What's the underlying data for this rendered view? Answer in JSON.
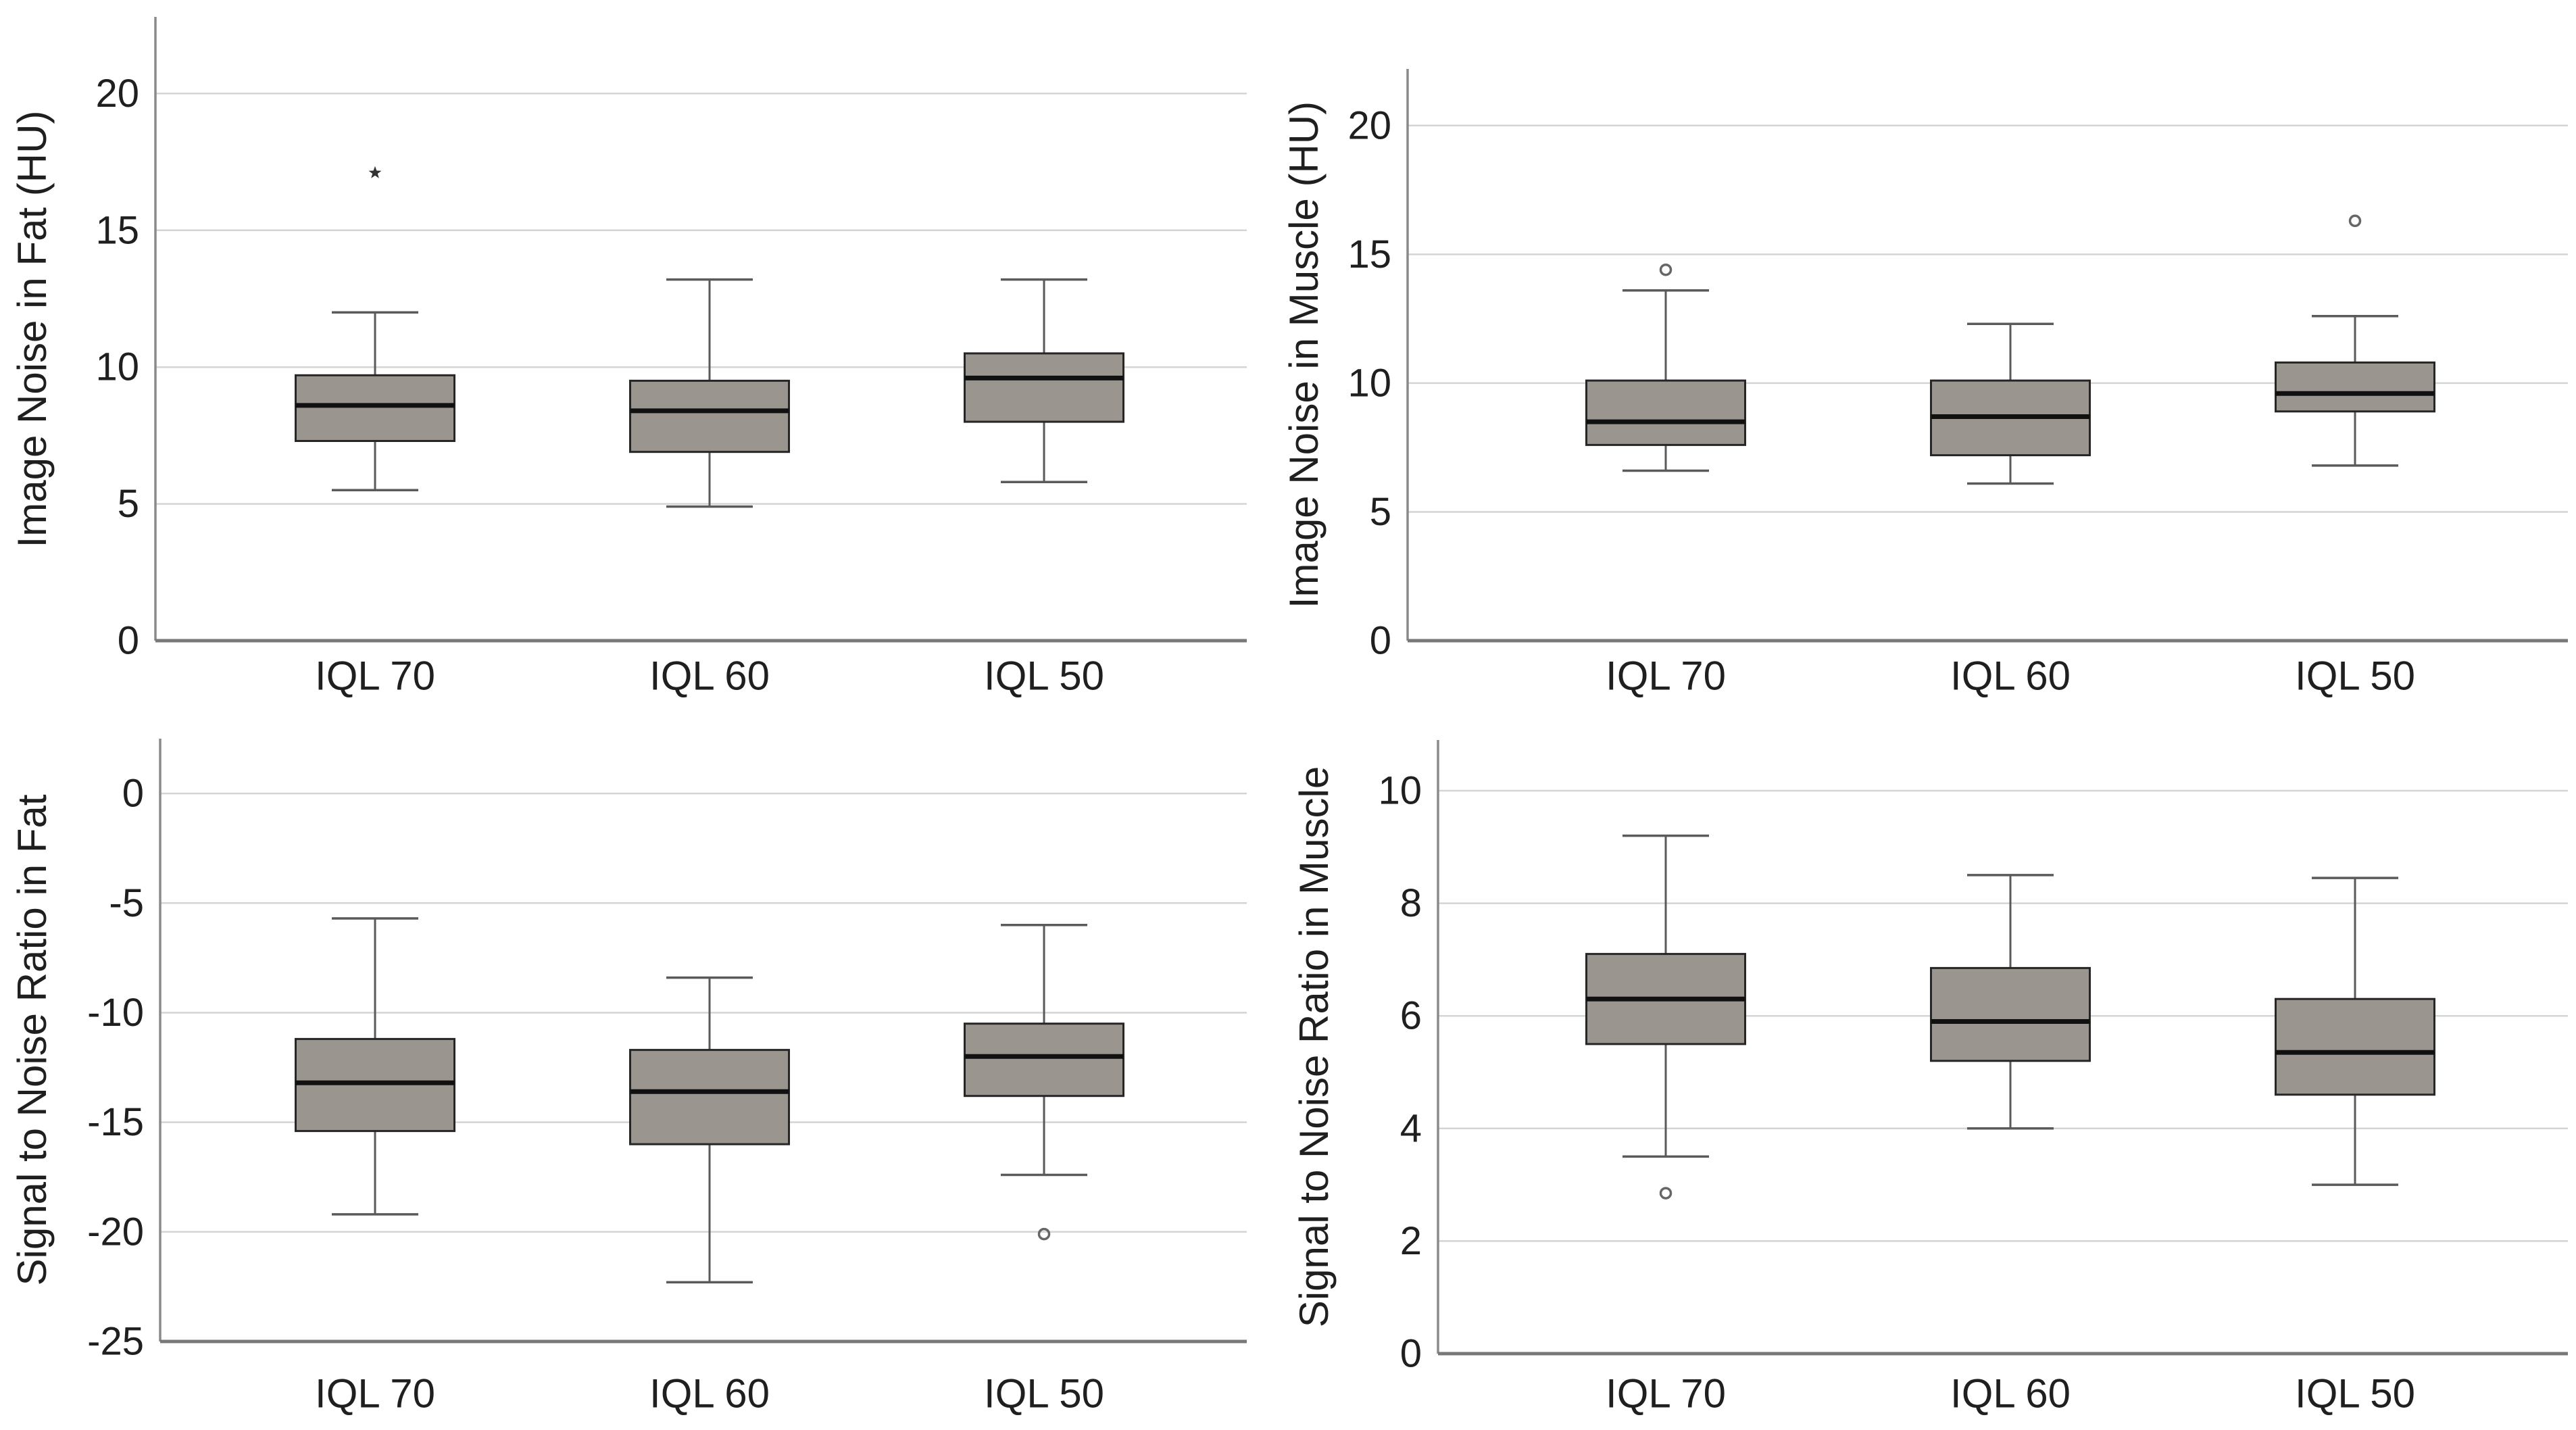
{
  "figure": {
    "background": "#ffffff",
    "colors": {
      "box_fill": "#9b9590",
      "box_border": "#262626",
      "median": "#111111",
      "whisker": "#5a5a5a",
      "gridline": "#d4d4d4",
      "y_axis_line": "#8a8a8a",
      "x_axis_line": "#787878",
      "outlier": "#666666",
      "text": "#1f1f1f"
    }
  },
  "chart_data": [
    {
      "type": "box",
      "title": "",
      "xlabel": "",
      "ylabel": "Image Noise in Fat (HU)",
      "categories": [
        "IQL 70",
        "IQL 60",
        "IQL 50"
      ],
      "yticks": [
        0,
        5,
        10,
        15,
        20
      ],
      "ylim": [
        0,
        22.8
      ],
      "grid": true,
      "boxes": [
        {
          "category": "IQL 70",
          "whisker_low": 5.5,
          "q1": 7.3,
          "median": 8.6,
          "q3": 9.7,
          "whisker_high": 12.0,
          "outliers": [
            {
              "value": 17.1,
              "symbol": "star"
            }
          ]
        },
        {
          "category": "IQL 60",
          "whisker_low": 4.9,
          "q1": 6.9,
          "median": 8.4,
          "q3": 9.5,
          "whisker_high": 13.2,
          "outliers": []
        },
        {
          "category": "IQL 50",
          "whisker_low": 5.8,
          "q1": 8.0,
          "median": 9.6,
          "q3": 10.5,
          "whisker_high": 13.2,
          "outliers": []
        }
      ]
    },
    {
      "type": "box",
      "title": "",
      "xlabel": "",
      "ylabel": "Image Noise in Muscle (HU)",
      "categories": [
        "IQL 70",
        "IQL 60",
        "IQL 50"
      ],
      "yticks": [
        0,
        5,
        10,
        15,
        20
      ],
      "ylim": [
        0,
        22.2
      ],
      "grid": true,
      "boxes": [
        {
          "category": "IQL 70",
          "whisker_low": 6.6,
          "q1": 7.6,
          "median": 8.5,
          "q3": 10.1,
          "whisker_high": 13.6,
          "outliers": [
            {
              "value": 14.4,
              "symbol": "circle"
            }
          ]
        },
        {
          "category": "IQL 60",
          "whisker_low": 6.1,
          "q1": 7.2,
          "median": 8.7,
          "q3": 10.1,
          "whisker_high": 12.3,
          "outliers": []
        },
        {
          "category": "IQL 50",
          "whisker_low": 6.8,
          "q1": 8.9,
          "median": 9.6,
          "q3": 10.8,
          "whisker_high": 12.6,
          "outliers": [
            {
              "value": 16.3,
              "symbol": "circle"
            }
          ]
        }
      ]
    },
    {
      "type": "box",
      "title": "",
      "xlabel": "",
      "ylabel": "Signal to Noise Ratio in Fat",
      "categories": [
        "IQL 70",
        "IQL 60",
        "IQL 50"
      ],
      "yticks": [
        0,
        -5,
        -10,
        -15,
        -20,
        -25
      ],
      "ylim": [
        -25,
        2.5
      ],
      "grid": true,
      "boxes": [
        {
          "category": "IQL 70",
          "whisker_low": -19.2,
          "q1": -15.4,
          "median": -13.2,
          "q3": -11.2,
          "whisker_high": -5.7,
          "outliers": []
        },
        {
          "category": "IQL 60",
          "whisker_low": -22.3,
          "q1": -16.0,
          "median": -13.6,
          "q3": -11.7,
          "whisker_high": -8.4,
          "outliers": []
        },
        {
          "category": "IQL 50",
          "whisker_low": -17.4,
          "q1": -13.8,
          "median": -12.0,
          "q3": -10.5,
          "whisker_high": -6.0,
          "outliers": [
            {
              "value": -20.1,
              "symbol": "circle"
            }
          ]
        }
      ]
    },
    {
      "type": "box",
      "title": "",
      "xlabel": "",
      "ylabel": "Signal to Noise Ratio in Muscle",
      "categories": [
        "IQL 70",
        "IQL 60",
        "IQL 50"
      ],
      "yticks": [
        0,
        2,
        4,
        6,
        8,
        10
      ],
      "ylim": [
        0,
        10.9
      ],
      "grid": true,
      "boxes": [
        {
          "category": "IQL 70",
          "whisker_low": 3.5,
          "q1": 5.5,
          "median": 6.3,
          "q3": 7.1,
          "whisker_high": 9.2,
          "outliers": [
            {
              "value": 2.85,
              "symbol": "circle"
            }
          ]
        },
        {
          "category": "IQL 60",
          "whisker_low": 4.0,
          "q1": 5.2,
          "median": 5.9,
          "q3": 6.85,
          "whisker_high": 8.5,
          "outliers": []
        },
        {
          "category": "IQL 50",
          "whisker_low": 3.0,
          "q1": 4.6,
          "median": 5.35,
          "q3": 6.3,
          "whisker_high": 8.45,
          "outliers": []
        }
      ]
    }
  ]
}
